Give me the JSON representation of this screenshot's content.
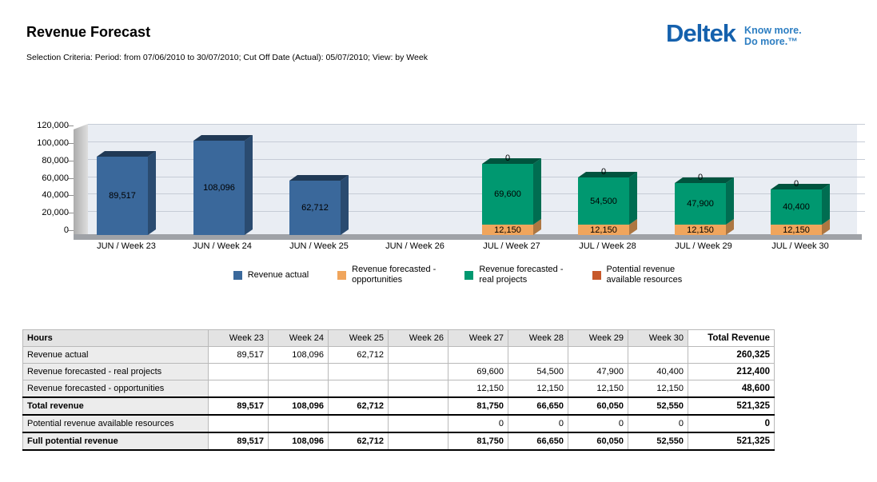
{
  "page": {
    "title": "Revenue Forecast",
    "criteria": "Selection Criteria: Period: from 07/06/2010 to 30/07/2010; Cut Off Date (Actual): 05/07/2010; View: by Week"
  },
  "logo": {
    "wordmark": "Deltek",
    "tagline_line1": "Know more.",
    "tagline_line2": "Do more.™",
    "wordmark_color": "#1561AD",
    "tagline_color": "#2D7EC2"
  },
  "chart_data": {
    "type": "bar",
    "variant": "3d-stacked-column",
    "categories": [
      "JUN / Week 23",
      "JUN / Week 24",
      "JUN / Week 25",
      "JUN / Week 26",
      "JUL / Week 27",
      "JUL / Week 28",
      "JUL / Week 29",
      "JUL / Week 30"
    ],
    "series": [
      {
        "name": "Revenue actual",
        "color": "#3A689B",
        "legend_label": "Revenue actual",
        "values": [
          89517,
          108096,
          62712,
          null,
          null,
          null,
          null,
          null
        ]
      },
      {
        "name": "Revenue forecasted - opportunities",
        "color": "#F0A55C",
        "legend_label": "Revenue forecasted -\nopportunities",
        "values": [
          null,
          null,
          null,
          null,
          12150,
          12150,
          12150,
          12150
        ]
      },
      {
        "name": "Revenue forecasted - real projects",
        "color": "#009870",
        "legend_label": "Revenue forecasted -\nreal projects",
        "values": [
          null,
          null,
          null,
          null,
          69600,
          54500,
          47900,
          40400
        ]
      },
      {
        "name": "Potential revenue available resources",
        "color": "#C7582A",
        "legend_label": "Potential revenue\navailable resources",
        "values": [
          null,
          null,
          null,
          null,
          0,
          0,
          0,
          0
        ]
      }
    ],
    "ylim": [
      0,
      120000
    ],
    "ytick_step": 20000,
    "ytick_labels": [
      "0",
      "20,000",
      "40,000",
      "60,000",
      "80,000",
      "100,000",
      "120,000"
    ],
    "grid": true,
    "legend_position": "bottom",
    "plot_bg_color": "#E9EDF3",
    "value_labels_visible": true
  },
  "table": {
    "columns": [
      "Hours",
      "Week 23",
      "Week 24",
      "Week 25",
      "Week 26",
      "Week 27",
      "Week 28",
      "Week 29",
      "Week 30",
      "Total Revenue"
    ],
    "rows": [
      {
        "label": "Revenue actual",
        "values": [
          "89,517",
          "108,096",
          "62,712",
          "",
          "",
          "",
          "",
          ""
        ],
        "total": "260,325",
        "bold": false
      },
      {
        "label": "Revenue forecasted - real projects",
        "values": [
          "",
          "",
          "",
          "",
          "69,600",
          "54,500",
          "47,900",
          "40,400"
        ],
        "total": "212,400",
        "bold": false
      },
      {
        "label": "Revenue forecasted - opportunities",
        "values": [
          "",
          "",
          "",
          "",
          "12,150",
          "12,150",
          "12,150",
          "12,150"
        ],
        "total": "48,600",
        "bold": false
      },
      {
        "label": "Total revenue",
        "values": [
          "89,517",
          "108,096",
          "62,712",
          "",
          "81,750",
          "66,650",
          "60,050",
          "52,550"
        ],
        "total": "521,325",
        "bold": true
      },
      {
        "label": "Potential revenue available resources",
        "values": [
          "",
          "",
          "",
          "",
          "0",
          "0",
          "0",
          "0"
        ],
        "total": "0",
        "bold": false
      },
      {
        "label": "Full potential revenue",
        "values": [
          "89,517",
          "108,096",
          "62,712",
          "",
          "81,750",
          "66,650",
          "60,050",
          "52,550"
        ],
        "total": "521,325",
        "bold": true
      }
    ]
  }
}
